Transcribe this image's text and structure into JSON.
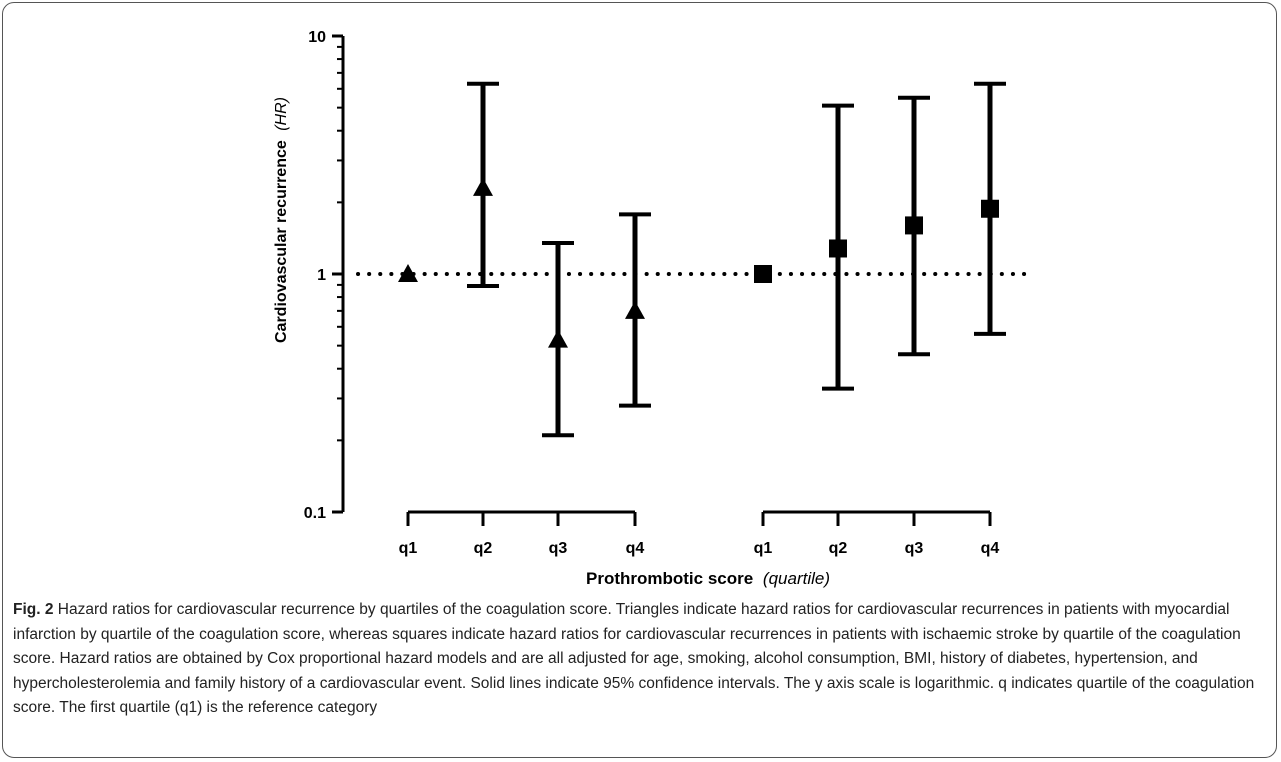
{
  "chart_data": {
    "type": "scatter",
    "ylabel_main": "Cardiovascular recurrence",
    "ylabel_italic": "(HR)",
    "xlabel_main": "Prothrombotic score",
    "xlabel_italic": "(quartile)",
    "yscale": "log",
    "ylim": [
      0.1,
      10
    ],
    "yticks": [
      {
        "value": 0.1,
        "label": "0.1"
      },
      {
        "value": 1,
        "label": "1"
      },
      {
        "value": 10,
        "label": "10"
      }
    ],
    "reference_line": 1,
    "grid": false,
    "groups": [
      {
        "marker": "triangle",
        "categories": [
          "q1",
          "q2",
          "q3",
          "q4"
        ],
        "values": [
          1.0,
          2.3,
          0.53,
          0.7
        ],
        "ci_low": [
          null,
          0.89,
          0.21,
          0.28
        ],
        "ci_high": [
          null,
          6.3,
          1.35,
          1.78
        ]
      },
      {
        "marker": "square",
        "categories": [
          "q1",
          "q2",
          "q3",
          "q4"
        ],
        "values": [
          1.0,
          1.28,
          1.6,
          1.88
        ],
        "ci_low": [
          null,
          0.33,
          0.46,
          0.56
        ],
        "ci_high": [
          null,
          5.1,
          5.5,
          6.3
        ]
      }
    ]
  },
  "caption": {
    "label": "Fig. 2",
    "text": "Hazard ratios for cardiovascular recurrence by quartiles of the coagulation score. Triangles indicate hazard ratios for cardiovascular recurrences in patients with myocardial infarction by quartile of the coagulation score, whereas squares indicate hazard ratios for cardiovascular recurrences in patients with ischaemic stroke by quartile of the coagulation score. Hazard ratios are obtained by Cox proportional hazard models and are all adjusted for age, smoking, alcohol consumption, BMI, history of diabetes, hypertension, and hypercholesterolemia and family history of a cardiovascular event. Solid lines indicate 95% confidence intervals. The y axis scale is logarithmic. q indicates quartile of the coagulation score. The first quartile (q1) is the reference category"
  }
}
